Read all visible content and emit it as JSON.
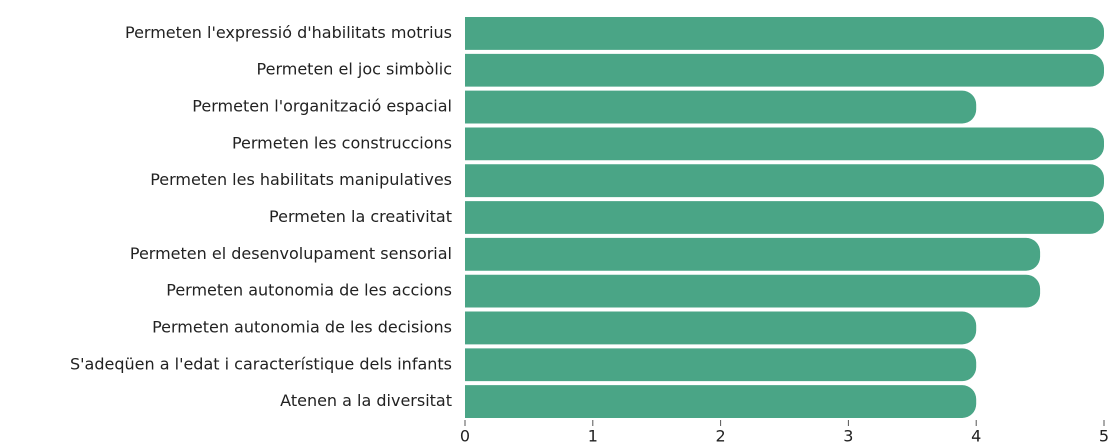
{
  "chart_data": {
    "type": "bar",
    "orientation": "horizontal",
    "categories": [
      "Permeten l'expressió d'habilitats motrius",
      "Permeten el joc simbòlic",
      "Permeten l'organització espacial",
      "Permeten les construccions",
      "Permeten les habilitats manipulatives",
      "Permeten la creativitat",
      "Permeten el desenvolupament sensorial",
      "Permeten autonomia de les accions ",
      "Permeten autonomia de les decisions",
      "S'adeqüen a l'edat i característique dels infants",
      "Atenen a la diversitat"
    ],
    "values": [
      5,
      5,
      4,
      5,
      5,
      5,
      4.5,
      4.5,
      4,
      4,
      4
    ],
    "color": "#4aa586",
    "xlim": [
      0,
      5
    ],
    "xticks": [
      0,
      1,
      2,
      3,
      4,
      5
    ],
    "grid": false
  }
}
